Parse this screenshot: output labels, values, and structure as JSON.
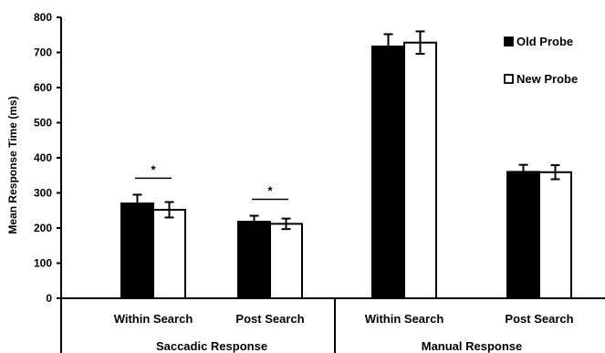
{
  "chart_data": {
    "type": "bar",
    "title": "",
    "ylabel": "Mean Response Time (ms)",
    "xlabel": "",
    "ylim": [
      0,
      800
    ],
    "yticks": [
      0,
      100,
      200,
      300,
      400,
      500,
      600,
      700,
      800
    ],
    "categories": [
      "Within Search",
      "Post Search",
      "Within Search",
      "Post Search"
    ],
    "groups": [
      {
        "label": "Saccadic Response",
        "categories": [
          0,
          1
        ]
      },
      {
        "label": "Manual Response",
        "categories": [
          2,
          3
        ]
      }
    ],
    "series": [
      {
        "name": "Old Probe",
        "color": "#000000",
        "values": [
          270,
          218,
          717,
          360
        ],
        "errors": [
          25,
          17,
          35,
          20
        ]
      },
      {
        "name": "New Probe",
        "color": "#ffffff",
        "values": [
          252,
          212,
          728,
          359
        ],
        "errors": [
          22,
          15,
          32,
          20
        ]
      }
    ],
    "significance": [
      {
        "category": 0,
        "label": "*"
      },
      {
        "category": 1,
        "label": "*"
      }
    ],
    "legend_position": "top-right",
    "grid": false
  }
}
